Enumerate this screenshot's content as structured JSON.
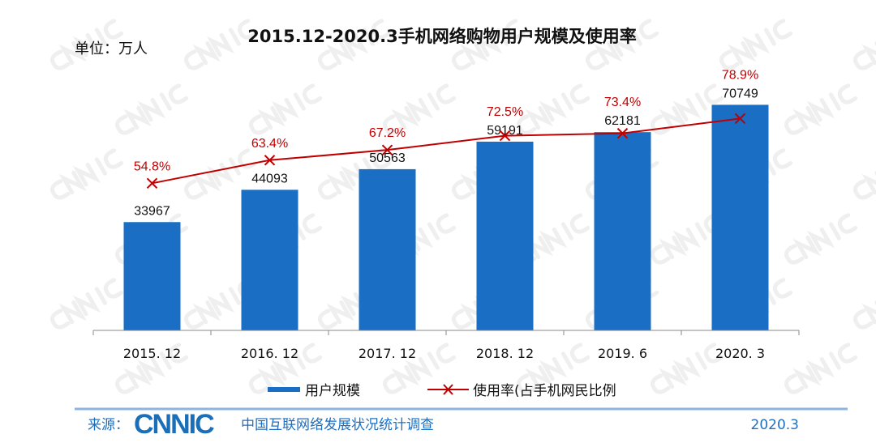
{
  "chart_data": {
    "type": "bar",
    "title": "2015.12-2020.3手机网络购物用户规模及使用率",
    "unit_label": "单位：万人",
    "categories": [
      "2015. 12",
      "2016. 12",
      "2017. 12",
      "2018. 12",
      "2019. 6",
      "2020. 3"
    ],
    "series": [
      {
        "name": "用户规模",
        "type": "bar",
        "values": [
          33967,
          44093,
          50563,
          59191,
          62181,
          70749
        ],
        "color": "#1a6fc4"
      },
      {
        "name": "使用率(占手机网民比例",
        "type": "line",
        "values": [
          54.8,
          63.4,
          67.2,
          72.5,
          73.4,
          78.9
        ],
        "labels": [
          "54.8%",
          "63.4%",
          "67.2%",
          "72.5%",
          "73.4%",
          "78.9%"
        ],
        "color": "#c00000",
        "marker": "x"
      }
    ],
    "ylim": [
      0,
      80000
    ],
    "y2lim": [
      0,
      95
    ],
    "grid": false,
    "legend": "bottom"
  },
  "footer": {
    "source_label": "来源：",
    "logo": "CNNIC",
    "org": "中国互联网络发展状况统计调查",
    "date": "2020.3"
  },
  "watermark": "CNNIC"
}
